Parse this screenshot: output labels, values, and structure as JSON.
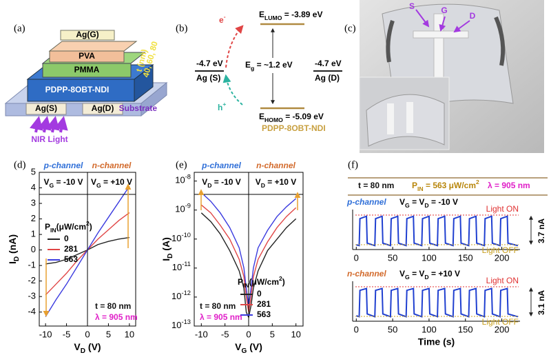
{
  "panel_a": {
    "label": "(a)",
    "layers": {
      "gate": "Ag(G)",
      "pva": "PVA",
      "pmma": "PMMA",
      "semiconductor": "PDPP-8OBT-NDI",
      "source": "Ag(S)",
      "drain": "Ag(D)",
      "substrate": "Substrate"
    },
    "thickness": [
      "t (nm)",
      "40, 60, 80"
    ],
    "light": "NIR Light"
  },
  "panel_b": {
    "label": "(b)",
    "lumo": [
      {
        "t": "E"
      },
      {
        "t": "LUMO",
        "sub": true
      },
      {
        "t": " = -3.89 eV"
      }
    ],
    "gap": [
      {
        "t": "E"
      },
      {
        "t": "g",
        "sub": true
      },
      {
        "t": " = ~1.2 eV"
      }
    ],
    "homo": [
      {
        "t": "E"
      },
      {
        "t": "HOMO",
        "sub": true
      },
      {
        "t": " = -5.09 eV"
      }
    ],
    "source_level": "-4.7 eV",
    "source": "Ag (S)",
    "drain_level": "-4.7 eV",
    "drain": "Ag (D)",
    "electron": [
      {
        "t": "e"
      },
      {
        "t": "-",
        "sup": true
      }
    ],
    "hole": [
      {
        "t": "h"
      },
      {
        "t": "+",
        "sup": true
      }
    ],
    "material": "PDPP-8OBT-NDI"
  },
  "panel_c": {
    "label": "(c)",
    "electrodes": [
      "S",
      "G",
      "D"
    ]
  },
  "chart_data": [
    {
      "type": "line",
      "panel_label": "(d)",
      "xlabel": [
        {
          "t": "V"
        },
        {
          "t": "D",
          "sub": true
        },
        {
          "t": " (V)"
        }
      ],
      "ylabel": [
        {
          "t": "I"
        },
        {
          "t": "D",
          "sub": true
        },
        {
          "t": " (nA)"
        }
      ],
      "channels": [
        {
          "name": "p-channel",
          "color": "#2f6fd8",
          "bias": [
            {
              "t": "V"
            },
            {
              "t": "G",
              "sub": true
            },
            {
              "t": " = -10 V"
            }
          ]
        },
        {
          "name": "n-channel",
          "color": "#d2692a",
          "bias": [
            {
              "t": "V"
            },
            {
              "t": "G",
              "sub": true
            },
            {
              "t": " = +10 V"
            }
          ]
        }
      ],
      "legend_title": [
        {
          "t": "P"
        },
        {
          "t": "IN",
          "sub": true
        },
        {
          "t": "(μW/cm"
        },
        {
          "t": "2",
          "sup": true
        },
        {
          "t": ")"
        }
      ],
      "annotations": [
        {
          "text": "t = 80 nm",
          "color": "#111111"
        },
        {
          "text": "λ = 905 nm",
          "color": "#e01fc8"
        }
      ],
      "x": [
        -10,
        -7.5,
        -5,
        -2.5,
        0,
        2.5,
        5,
        7.5,
        10
      ],
      "series": [
        {
          "name": "0",
          "color": "#222222",
          "values": [
            -0.9,
            -0.8,
            -0.6,
            -0.3,
            0,
            0.35,
            0.55,
            0.7,
            0.8
          ]
        },
        {
          "name": "281",
          "color": "#e04545",
          "values": [
            -2.9,
            -2.2,
            -1.5,
            -0.7,
            0,
            0.7,
            1.3,
            1.9,
            2.4
          ]
        },
        {
          "name": "563",
          "color": "#3a3adf",
          "values": [
            -4.3,
            -3.2,
            -2.2,
            -1.1,
            0,
            1.1,
            2.1,
            3.1,
            4.1
          ]
        }
      ],
      "xlim": [
        -11.5,
        11.5
      ],
      "xticks": [
        -10,
        -5,
        0,
        5,
        10
      ],
      "ylim": [
        -4.9,
        5
      ],
      "yticks": [
        -4,
        -3,
        -2,
        -1,
        0,
        1,
        2,
        3,
        4,
        5
      ]
    },
    {
      "type": "line",
      "panel_label": "(e)",
      "log_y": true,
      "xlabel": [
        {
          "t": "V"
        },
        {
          "t": "G",
          "sub": true
        },
        {
          "t": " (V)"
        }
      ],
      "ylabel": [
        {
          "t": "I"
        },
        {
          "t": "D",
          "sub": true
        },
        {
          "t": " (A)"
        }
      ],
      "channels": [
        {
          "name": "p-channel",
          "color": "#2f6fd8",
          "bias": [
            {
              "t": "V"
            },
            {
              "t": "D",
              "sub": true
            },
            {
              "t": " = -10 V"
            }
          ]
        },
        {
          "name": "n-channel",
          "color": "#d2692a",
          "bias": [
            {
              "t": "V"
            },
            {
              "t": "D",
              "sub": true
            },
            {
              "t": " = +10 V"
            }
          ]
        }
      ],
      "legend_title": [
        {
          "t": "P"
        },
        {
          "t": "IN",
          "sub": true
        },
        {
          "t": "(μW/cm"
        },
        {
          "t": "2",
          "sup": true
        },
        {
          "t": ")"
        }
      ],
      "annotations": [
        {
          "text": "t = 80 nm",
          "color": "#111111"
        },
        {
          "text": "λ = 905 nm",
          "color": "#e01fc8"
        }
      ],
      "x": [
        -10,
        -8,
        -6,
        -4,
        -2,
        -1,
        -0.5,
        0,
        0.5,
        1,
        2,
        4,
        6,
        8,
        10
      ],
      "series": [
        {
          "name": "0",
          "color": "#222222",
          "values": [
            8e-10,
            4e-10,
            1.5e-10,
            4e-11,
            8e-12,
            2e-12,
            3e-13,
            2e-13,
            5e-13,
            2e-12,
            8e-12,
            4e-11,
            1e-10,
            2.5e-10,
            5e-10
          ]
        },
        {
          "name": "281",
          "color": "#e04545",
          "values": [
            1.5e-09,
            8e-10,
            3e-10,
            1e-10,
            2e-11,
            5e-12,
            1e-12,
            3e-13,
            1e-12,
            5e-12,
            2e-11,
            8e-11,
            2.5e-10,
            6e-10,
            1.2e-09
          ]
        },
        {
          "name": "563",
          "color": "#3a3adf",
          "values": [
            4e-09,
            2e-09,
            8e-10,
            2.5e-10,
            5e-11,
            1e-11,
            2e-12,
            5e-13,
            2e-12,
            1e-11,
            5e-11,
            2e-10,
            6e-10,
            1.3e-09,
            2.5e-09
          ]
        }
      ],
      "xlim": [
        -11.5,
        11.5
      ],
      "xticks": [
        -10,
        -5,
        0,
        5,
        10
      ],
      "ylim": [
        1e-13,
        2e-08
      ],
      "yticks": [
        {
          "value": 1e-08,
          "label": [
            {
              "t": "10"
            },
            {
              "t": "-8",
              "sup": true
            }
          ]
        },
        {
          "value": 1e-09,
          "label": [
            {
              "t": "10"
            },
            {
              "t": "-9",
              "sup": true
            }
          ]
        },
        {
          "value": 1e-10,
          "label": [
            {
              "t": "10"
            },
            {
              "t": "-10",
              "sup": true
            }
          ]
        },
        {
          "value": 1e-11,
          "label": [
            {
              "t": "10"
            },
            {
              "t": "-11",
              "sup": true
            }
          ]
        },
        {
          "value": 1e-12,
          "label": [
            {
              "t": "10"
            },
            {
              "t": "-12",
              "sup": true
            }
          ]
        },
        {
          "value": 1e-13,
          "label": [
            {
              "t": "10"
            },
            {
              "t": "-13",
              "sup": true
            }
          ]
        }
      ]
    },
    {
      "type": "line",
      "panel_label": "(f)",
      "conditions": [
        {
          "text": [
            {
              "t": "t = 80 nm"
            }
          ],
          "color": "#111111"
        },
        {
          "text": [
            {
              "t": "P"
            },
            {
              "t": "IN",
              "sub": true
            },
            {
              "t": " = 563 μW/cm"
            },
            {
              "t": "2",
              "sup": true
            }
          ],
          "color": "#b8860b"
        },
        {
          "text": [
            {
              "t": "λ = 905 nm"
            }
          ],
          "color": "#e01fc8"
        }
      ],
      "channel": {
        "name": "p-channel",
        "color": "#2f6fd8",
        "bias": [
          {
            "t": "V"
          },
          {
            "t": "G",
            "sub": true
          },
          {
            "t": " = V"
          },
          {
            "t": "D",
            "sub": true
          },
          {
            "t": " = -10 V"
          }
        ]
      },
      "levels": [
        {
          "text": "Light ON",
          "color": "#e03030"
        },
        {
          "text": "Light OFF",
          "color": "#c8a020"
        }
      ],
      "swing": "3.7 nA",
      "x": [
        0,
        4,
        5,
        14,
        15,
        25.5,
        26.5,
        35.5,
        36.5,
        47,
        48,
        57,
        58,
        68.5,
        69.5,
        78.5,
        79.5,
        90,
        91,
        100,
        101,
        111.5,
        112.5,
        121.5,
        122.5,
        133,
        134,
        143,
        144,
        154.5,
        155.5,
        164.5,
        165.5,
        176,
        177,
        186,
        187,
        197.5,
        198.5,
        207.5,
        208.5,
        222
      ],
      "values": [
        0.1,
        0,
        3.4,
        3.7,
        0.3,
        0,
        3.4,
        3.7,
        0.3,
        0,
        3.4,
        3.7,
        0.3,
        0,
        3.4,
        3.7,
        0.3,
        0,
        3.4,
        3.7,
        0.3,
        0,
        3.4,
        3.7,
        0.3,
        0,
        3.4,
        3.7,
        0.3,
        0,
        3.4,
        3.7,
        0.3,
        0,
        3.4,
        3.7,
        0.3,
        0,
        3.4,
        3.7,
        0.3,
        0
      ],
      "color": "#1f3fd0",
      "xlim": [
        -5,
        225
      ],
      "xticks": [
        0,
        50,
        100,
        150,
        200
      ],
      "ylim": [
        -0.5,
        4.2
      ]
    },
    {
      "type": "line",
      "channel": {
        "name": "n-channel",
        "color": "#d2692a",
        "bias": [
          {
            "t": "V"
          },
          {
            "t": "G",
            "sub": true
          },
          {
            "t": " = V"
          },
          {
            "t": "D",
            "sub": true
          },
          {
            "t": " = +10 V"
          }
        ]
      },
      "levels": [
        {
          "text": "Light ON",
          "color": "#e03030"
        },
        {
          "text": "Light OFF",
          "color": "#c8a020"
        }
      ],
      "swing": "3.1 nA",
      "xlabel": "Time (s)",
      "x": [
        0,
        4,
        5,
        14,
        15,
        25.5,
        26.5,
        35.5,
        36.5,
        47,
        48,
        57,
        58,
        68.5,
        69.5,
        78.5,
        79.5,
        90,
        91,
        100,
        101,
        111.5,
        112.5,
        121.5,
        122.5,
        133,
        134,
        143,
        144,
        154.5,
        155.5,
        164.5,
        165.5,
        176,
        177,
        186,
        187,
        197.5,
        198.5,
        207.5,
        208.5,
        222
      ],
      "values": [
        0.1,
        0,
        2.9,
        3.1,
        0.3,
        0,
        2.9,
        3.1,
        0.3,
        0,
        2.9,
        3.1,
        0.3,
        0,
        2.9,
        3.1,
        0.3,
        0,
        2.9,
        3.1,
        0.3,
        0,
        2.9,
        3.1,
        0.3,
        0,
        2.9,
        3.1,
        0.3,
        0,
        2.9,
        3.1,
        0.3,
        0,
        2.9,
        3.1,
        0.3,
        0,
        2.9,
        3.1,
        0.3,
        0
      ],
      "color": "#1f3fd0",
      "xlim": [
        -5,
        225
      ],
      "xticks": [
        0,
        50,
        100,
        150,
        200
      ],
      "ylim": [
        -0.5,
        3.6
      ]
    }
  ]
}
